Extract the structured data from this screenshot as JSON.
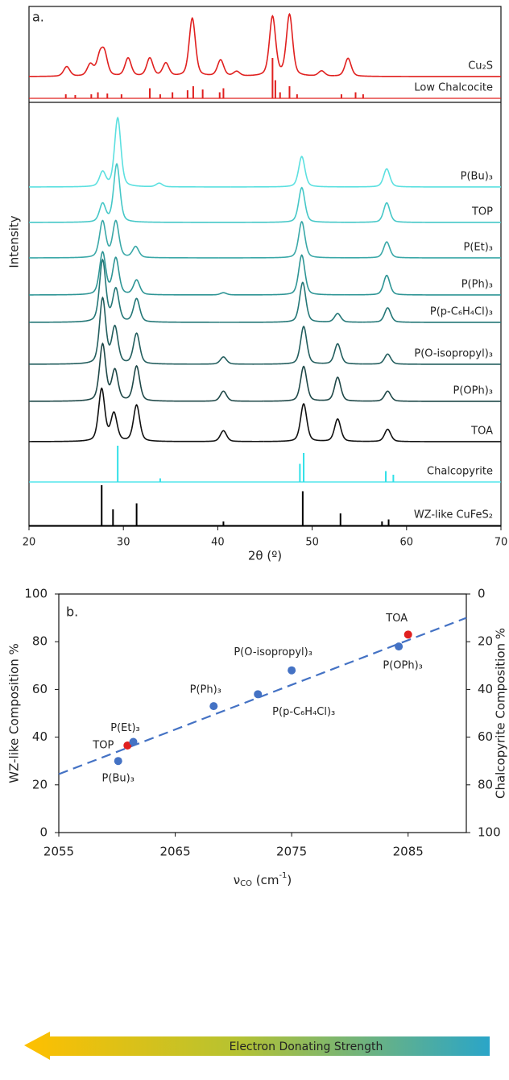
{
  "chart_data": [
    {
      "type": "xrd",
      "panel_label": "a.",
      "xlabel": "2θ (º)",
      "ylabel": "Intensity",
      "xlim": [
        20,
        70
      ],
      "xticks": [
        20,
        30,
        40,
        50,
        60,
        70
      ],
      "series": [
        {
          "name": "Cu₂S",
          "color": "#e0201f",
          "style": "profile",
          "x": [
            24.0,
            26.5,
            27.5,
            28.0,
            30.5,
            32.8,
            34.5,
            37.3,
            40.3,
            42.0,
            45.8,
            47.6,
            51.0,
            53.8
          ],
          "values": [
            0.15,
            0.18,
            0.28,
            0.32,
            0.28,
            0.28,
            0.2,
            0.9,
            0.25,
            0.07,
            0.92,
            0.95,
            0.08,
            0.28
          ]
        },
        {
          "name": "Low Chalcocite",
          "color": "#e0201f",
          "style": "sticks",
          "x": [
            23.9,
            24.9,
            26.6,
            27.3,
            28.3,
            29.8,
            32.8,
            33.9,
            35.2,
            36.8,
            37.4,
            38.4,
            40.2,
            40.6,
            45.8,
            46.1,
            46.6,
            47.6,
            48.4,
            53.1,
            54.6,
            55.4
          ],
          "values": [
            0.1,
            0.08,
            0.1,
            0.15,
            0.12,
            0.1,
            0.25,
            0.1,
            0.15,
            0.2,
            0.3,
            0.22,
            0.15,
            0.25,
            1.0,
            0.45,
            0.15,
            0.3,
            0.1,
            0.1,
            0.15,
            0.1
          ]
        },
        {
          "name": "P(Bu)₃",
          "color": "#5ce0e0",
          "style": "profile",
          "x": [
            27.8,
            29.4,
            33.8,
            48.9,
            57.9
          ],
          "values": [
            0.2,
            0.95,
            0.05,
            0.42,
            0.25
          ]
        },
        {
          "name": "TOP",
          "color": "#45c7c7",
          "style": "profile",
          "x": [
            27.8,
            29.3,
            48.9,
            57.9
          ],
          "values": [
            0.25,
            0.8,
            0.48,
            0.27
          ]
        },
        {
          "name": "P(Et)₃",
          "color": "#3aa8a8",
          "style": "profile",
          "x": [
            27.8,
            29.2,
            31.3,
            48.9,
            57.9
          ],
          "values": [
            0.5,
            0.5,
            0.15,
            0.5,
            0.22
          ]
        },
        {
          "name": "P(Ph)₃",
          "color": "#2e9595",
          "style": "profile",
          "x": [
            27.8,
            29.2,
            31.4,
            40.6,
            48.9,
            57.9
          ],
          "values": [
            0.58,
            0.5,
            0.2,
            0.03,
            0.55,
            0.27
          ]
        },
        {
          "name": "P(p-C₆H₄Cl)₃",
          "color": "#247777",
          "style": "profile",
          "x": [
            27.8,
            29.2,
            31.4,
            49.0,
            52.7,
            58.0
          ],
          "values": [
            0.85,
            0.45,
            0.32,
            0.55,
            0.12,
            0.2
          ]
        },
        {
          "name": "P(O-isopropyl)₃",
          "color": "#235e5e",
          "style": "profile",
          "x": [
            27.8,
            29.1,
            31.4,
            40.6,
            49.1,
            52.7,
            58.0
          ],
          "values": [
            0.9,
            0.5,
            0.42,
            0.1,
            0.52,
            0.28,
            0.14
          ]
        },
        {
          "name": "P(OPh)₃",
          "color": "#1f4848",
          "style": "profile",
          "x": [
            27.8,
            29.1,
            31.4,
            40.6,
            49.1,
            52.7,
            58.0
          ],
          "values": [
            0.78,
            0.42,
            0.48,
            0.14,
            0.48,
            0.33,
            0.14
          ]
        },
        {
          "name": "TOA",
          "color": "#111111",
          "style": "profile",
          "x": [
            27.7,
            29.0,
            31.4,
            40.6,
            49.1,
            52.7,
            58.0
          ],
          "values": [
            0.72,
            0.38,
            0.5,
            0.15,
            0.52,
            0.31,
            0.17
          ]
        },
        {
          "name": "Chalcopyrite",
          "color": "#30e0e8",
          "style": "sticks",
          "x": [
            29.4,
            33.9,
            48.7,
            49.1,
            57.8,
            58.6
          ],
          "values": [
            1.0,
            0.1,
            0.5,
            0.8,
            0.3,
            0.2
          ]
        },
        {
          "name": "WZ-like CuFeS₂",
          "color": "#000000",
          "style": "sticks",
          "x": [
            27.7,
            28.9,
            31.4,
            40.6,
            49.0,
            53.0,
            57.4,
            58.1
          ],
          "values": [
            1.0,
            0.4,
            0.55,
            0.1,
            0.85,
            0.3,
            0.1,
            0.15
          ]
        }
      ]
    },
    {
      "type": "scatter",
      "panel_label": "b.",
      "xlabel": [
        "ν",
        "CO",
        " (cm",
        "-1",
        ")"
      ],
      "ylabel": "WZ-like Composition %",
      "y2label": "Chalcopyrite Composition %",
      "xlim": [
        2055,
        2090
      ],
      "xticks": [
        2055,
        2065,
        2075,
        2085
      ],
      "ylim": [
        0,
        100
      ],
      "yticks": [
        0,
        20,
        40,
        60,
        80,
        100
      ],
      "y2lim": [
        100,
        0
      ],
      "y2ticks": [
        0,
        20,
        40,
        60,
        80,
        100
      ],
      "labels": [
        "P(Bu)₃",
        "TOP",
        "P(Et)₃",
        "P(Ph)₃",
        "P(p-C₆H₄Cl)₃",
        "P(O-isopropyl)₃",
        "P(OPh)₃",
        "TOA"
      ],
      "x": [
        2060.1,
        2060.9,
        2061.4,
        2068.3,
        2072.1,
        2075.0,
        2084.2,
        2085.0
      ],
      "values": [
        30,
        36.5,
        38,
        53,
        58,
        68,
        78,
        83
      ],
      "colors": [
        "#4472c4",
        "#e0201f",
        "#4472c4",
        "#4472c4",
        "#4472c4",
        "#4472c4",
        "#4472c4",
        "#e0201f"
      ],
      "fit": {
        "x": [
          2055,
          2090
        ],
        "values": [
          24.5,
          90
        ],
        "color": "#4472c4",
        "dash": true
      },
      "annotation": "Electron Donating Strength"
    }
  ]
}
